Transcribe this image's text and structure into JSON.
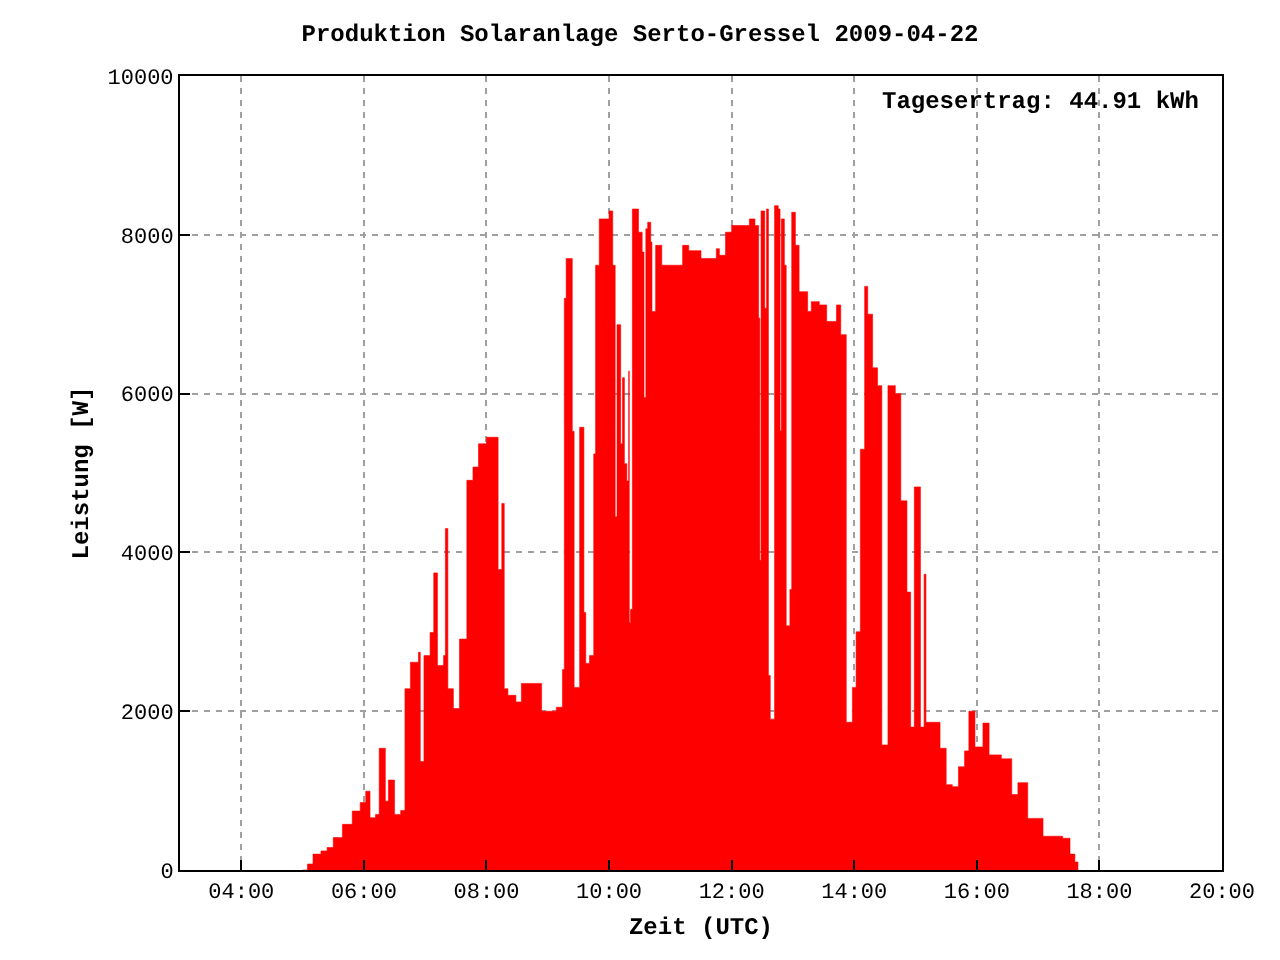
{
  "chart_data": {
    "type": "area",
    "title": "Produktion Solaranlage Serto-Gressel 2009-04-22",
    "xlabel": "Zeit (UTC)",
    "ylabel": "Leistung [W]",
    "annotations": [
      "Tagesertrag: 44.91 kWh"
    ],
    "x": [
      5.0,
      5.08,
      5.17,
      5.3,
      5.4,
      5.5,
      5.65,
      5.81,
      5.94,
      6.03,
      6.1,
      6.19,
      6.25,
      6.35,
      6.4,
      6.5,
      6.6,
      6.67,
      6.76,
      6.89,
      6.92,
      6.98,
      7.08,
      7.14,
      7.2,
      7.3,
      7.33,
      7.37,
      7.46,
      7.56,
      7.68,
      7.78,
      7.87,
      8.0,
      8.1,
      8.19,
      8.25,
      8.29,
      8.35,
      8.48,
      8.57,
      8.8,
      8.9,
      9.05,
      9.14,
      9.24,
      9.27,
      9.3,
      9.36,
      9.4,
      9.43,
      9.52,
      9.59,
      9.62,
      9.68,
      9.75,
      9.78,
      9.84,
      10.0,
      10.06,
      10.1,
      10.13,
      10.19,
      10.22,
      10.25,
      10.29,
      10.32,
      10.33,
      10.35,
      10.38,
      10.48,
      10.54,
      10.57,
      10.6,
      10.63,
      10.68,
      10.7,
      10.76,
      10.86,
      11.17,
      11.2,
      11.3,
      11.5,
      11.75,
      11.8,
      11.9,
      12.0,
      12.29,
      12.38,
      12.44,
      12.46,
      12.48,
      12.54,
      12.57,
      12.6,
      12.63,
      12.7,
      12.76,
      12.79,
      12.81,
      12.86,
      12.89,
      12.95,
      12.98,
      13.04,
      13.1,
      13.24,
      13.3,
      13.43,
      13.55,
      13.71,
      13.78,
      13.87,
      13.97,
      14.03,
      14.1,
      14.17,
      14.22,
      14.3,
      14.38,
      14.45,
      14.55,
      14.67,
      14.76,
      14.82,
      14.86,
      14.92,
      14.98,
      15.08,
      15.14,
      15.17,
      15.4,
      15.5,
      15.6,
      15.7,
      15.8,
      15.87,
      15.97,
      16.1,
      16.2,
      16.4,
      16.57,
      16.67,
      16.83,
      17.08,
      17.3,
      17.4,
      17.52,
      17.6,
      17.65
    ],
    "values": [
      0,
      75,
      200,
      240,
      283,
      408,
      575,
      742,
      850,
      992,
      658,
      700,
      1533,
      867,
      1133,
      700,
      750,
      2283,
      2617,
      2742,
      1367,
      2700,
      2992,
      3742,
      2575,
      2700,
      4300,
      2283,
      2033,
      2908,
      4908,
      5075,
      5367,
      5450,
      5450,
      3783,
      4617,
      2283,
      2200,
      2117,
      2350,
      2350,
      2000,
      2000,
      2050,
      2525,
      7200,
      7700,
      7700,
      5525,
      2300,
      5575,
      3242,
      2600,
      2700,
      5240,
      7617,
      8200,
      8300,
      7617,
      4450,
      6867,
      5367,
      6200,
      5117,
      4900,
      6283,
      3117,
      3283,
      8325,
      8033,
      7783,
      5950,
      8075,
      8158,
      7908,
      7033,
      7867,
      7617,
      7617,
      7867,
      7800,
      7700,
      7825,
      7742,
      8033,
      8117,
      8200,
      8117,
      6950,
      3900,
      8300,
      7075,
      8325,
      2450,
      1900,
      8367,
      8325,
      5533,
      8200,
      7617,
      3075,
      3533,
      8283,
      7867,
      7283,
      7033,
      7158,
      7117,
      6908,
      7117,
      6742,
      1860,
      2300,
      3000,
      5300,
      7350,
      7000,
      6325,
      6100,
      1575,
      6100,
      6000,
      4650,
      4650,
      3500,
      1800,
      4825,
      1800,
      3725,
      1860,
      1533,
      1075,
      1050,
      1300,
      1500,
      2000,
      1550,
      1850,
      1450,
      1400,
      950,
      1100,
      650,
      425,
      425,
      400,
      200,
      100,
      0
    ],
    "color": "#ff0000",
    "xlim": [
      3,
      20
    ],
    "ylim": [
      0,
      10000
    ],
    "xticks": [
      {
        "value": 4,
        "label": "04:00"
      },
      {
        "value": 6,
        "label": "06:00"
      },
      {
        "value": 8,
        "label": "08:00"
      },
      {
        "value": 10,
        "label": "10:00"
      },
      {
        "value": 12,
        "label": "12:00"
      },
      {
        "value": 14,
        "label": "14:00"
      },
      {
        "value": 16,
        "label": "16:00"
      },
      {
        "value": 18,
        "label": "18:00"
      },
      {
        "value": 20,
        "label": "20:00"
      }
    ],
    "yticks": [
      0,
      2000,
      4000,
      6000,
      8000,
      10000
    ],
    "grid": true,
    "legend": false
  }
}
